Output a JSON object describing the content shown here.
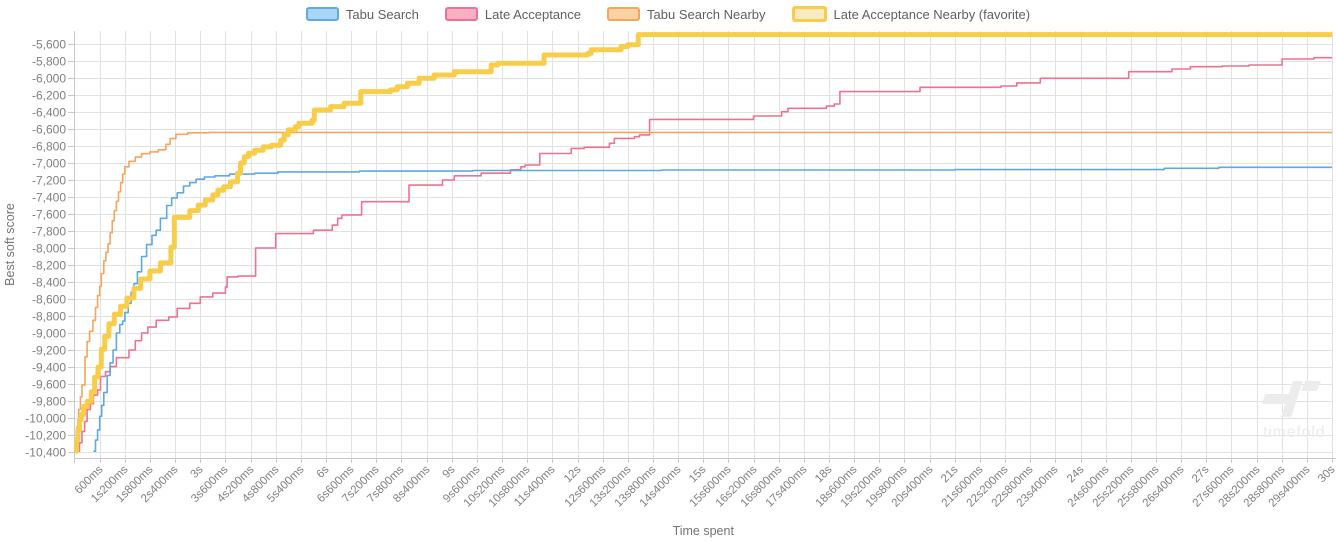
{
  "watermark": {
    "text": "timefold"
  },
  "axes": {
    "y": {
      "title": "Best soft score",
      "tick_labels": [
        "-5,600",
        "-5,800",
        "-6,000",
        "-6,200",
        "-6,400",
        "-6,600",
        "-6,800",
        "-7,000",
        "-7,200",
        "-7,400",
        "-7,600",
        "-7,800",
        "-8,000",
        "-8,200",
        "-8,400",
        "-8,600",
        "-8,800",
        "-9,000",
        "-9,200",
        "-9,400",
        "-9,600",
        "-9,800",
        "-10,000",
        "-10,200",
        "-10,400"
      ]
    },
    "x": {
      "title": "Time spent",
      "tick_labels": [
        "600ms",
        "1s200ms",
        "1s800ms",
        "2s400ms",
        "3s",
        "3s600ms",
        "4s200ms",
        "4s800ms",
        "5s400ms",
        "6s",
        "6s600ms",
        "7s200ms",
        "7s800ms",
        "8s400ms",
        "9s",
        "9s600ms",
        "10s200ms",
        "10s800ms",
        "11s400ms",
        "12s",
        "12s600ms",
        "13s200ms",
        "13s800ms",
        "14s400ms",
        "15s",
        "15s600ms",
        "16s200ms",
        "16s800ms",
        "17s400ms",
        "18s",
        "18s600ms",
        "19s200ms",
        "19s800ms",
        "20s400ms",
        "21s",
        "21s600ms",
        "22s200ms",
        "22s800ms",
        "23s400ms",
        "24s",
        "24s600ms",
        "25s200ms",
        "25s800ms",
        "26s400ms",
        "27s",
        "27s600ms",
        "28s200ms",
        "28s800ms",
        "29s400ms",
        "30s"
      ]
    }
  },
  "colors": {
    "grid": "#e2e2e2",
    "axis_line": "#c9c9c9",
    "tick_text": "#7f7f7f",
    "axis_title": "#737373",
    "watermark": "#ececec"
  },
  "chart_data": {
    "type": "line",
    "step_mode": "step-after",
    "xlabel": "Time spent",
    "ylabel": "Best soft score",
    "xlim_seconds": [
      0,
      30
    ],
    "ylim": [
      -10400,
      -5600
    ],
    "y_tick_step": 200,
    "x_tick_step_seconds": 0.6,
    "grid": true,
    "legend_position": "top-center",
    "series": [
      {
        "name": "Late Acceptance",
        "color": "#ed7291",
        "legend_fill": "#f9afc3",
        "line_width": 1.6,
        "favorite": false,
        "points": [
          [
            0.07,
            -10390
          ],
          [
            0.12,
            -10290
          ],
          [
            0.18,
            -10160
          ],
          [
            0.24,
            -10040
          ],
          [
            0.3,
            -9900
          ],
          [
            0.38,
            -9830
          ],
          [
            0.45,
            -9730
          ],
          [
            0.55,
            -9670
          ],
          [
            0.62,
            -9510
          ],
          [
            0.74,
            -9455
          ],
          [
            0.85,
            -9395
          ],
          [
            1.0,
            -9290
          ],
          [
            1.3,
            -9200
          ],
          [
            1.45,
            -9090
          ],
          [
            1.6,
            -9000
          ],
          [
            1.75,
            -8930
          ],
          [
            1.95,
            -8850
          ],
          [
            2.25,
            -8810
          ],
          [
            2.45,
            -8710
          ],
          [
            2.75,
            -8650
          ],
          [
            3.0,
            -8575
          ],
          [
            3.3,
            -8530
          ],
          [
            3.6,
            -8460
          ],
          [
            3.64,
            -8340
          ],
          [
            3.9,
            -8330
          ],
          [
            4.32,
            -8000
          ],
          [
            4.8,
            -7830
          ],
          [
            5.7,
            -7790
          ],
          [
            6.15,
            -7730
          ],
          [
            6.28,
            -7650
          ],
          [
            6.38,
            -7610
          ],
          [
            6.85,
            -7455
          ],
          [
            7.98,
            -7260
          ],
          [
            8.78,
            -7200
          ],
          [
            9.06,
            -7150
          ],
          [
            9.7,
            -7120
          ],
          [
            10.4,
            -7080
          ],
          [
            10.65,
            -7045
          ],
          [
            10.75,
            -7023
          ],
          [
            11.1,
            -6888
          ],
          [
            11.85,
            -6828
          ],
          [
            12.16,
            -6815
          ],
          [
            12.76,
            -6768
          ],
          [
            12.88,
            -6710
          ],
          [
            13.36,
            -6690
          ],
          [
            13.48,
            -6670
          ],
          [
            13.72,
            -6487
          ],
          [
            16.2,
            -6447
          ],
          [
            16.87,
            -6396
          ],
          [
            17.02,
            -6356
          ],
          [
            17.94,
            -6330
          ],
          [
            18.13,
            -6306
          ],
          [
            18.26,
            -6160
          ],
          [
            20.17,
            -6110
          ],
          [
            22.1,
            -6094
          ],
          [
            22.48,
            -6058
          ],
          [
            23.04,
            -6003
          ],
          [
            25.15,
            -5926
          ],
          [
            26.18,
            -5894
          ],
          [
            26.62,
            -5867
          ],
          [
            27.38,
            -5859
          ],
          [
            28.02,
            -5847
          ],
          [
            28.81,
            -5776
          ],
          [
            29.57,
            -5761
          ],
          [
            30,
            -5761
          ]
        ]
      },
      {
        "name": "Tabu Search",
        "color": "#5fa8e0",
        "legend_fill": "#a9d6f4",
        "line_width": 1.6,
        "favorite": false,
        "points": [
          [
            0.45,
            -10390
          ],
          [
            0.5,
            -10260
          ],
          [
            0.55,
            -10140
          ],
          [
            0.6,
            -9980
          ],
          [
            0.65,
            -9850
          ],
          [
            0.7,
            -9700
          ],
          [
            0.78,
            -9500
          ],
          [
            0.85,
            -9350
          ],
          [
            0.92,
            -9200
          ],
          [
            1.0,
            -9000
          ],
          [
            1.08,
            -8900
          ],
          [
            1.15,
            -8860
          ],
          [
            1.2,
            -8760
          ],
          [
            1.28,
            -8650
          ],
          [
            1.35,
            -8520
          ],
          [
            1.42,
            -8420
          ],
          [
            1.5,
            -8280
          ],
          [
            1.6,
            -8100
          ],
          [
            1.72,
            -7960
          ],
          [
            1.85,
            -7850
          ],
          [
            1.95,
            -7790
          ],
          [
            2.05,
            -7650
          ],
          [
            2.2,
            -7500
          ],
          [
            2.32,
            -7410
          ],
          [
            2.45,
            -7350
          ],
          [
            2.6,
            -7270
          ],
          [
            2.75,
            -7230
          ],
          [
            2.9,
            -7190
          ],
          [
            3.1,
            -7165
          ],
          [
            3.35,
            -7150
          ],
          [
            3.7,
            -7130
          ],
          [
            4.3,
            -7120
          ],
          [
            4.85,
            -7105
          ],
          [
            6.8,
            -7095
          ],
          [
            9.5,
            -7088
          ],
          [
            14.0,
            -7082
          ],
          [
            21.0,
            -7078
          ],
          [
            26.0,
            -7062
          ],
          [
            27.3,
            -7050
          ],
          [
            30,
            -7050
          ]
        ]
      },
      {
        "name": "Tabu Search Nearby",
        "color": "#f5a55c",
        "legend_fill": "#fbd2a2",
        "line_width": 1.6,
        "favorite": false,
        "points": [
          [
            0.03,
            -10390
          ],
          [
            0.06,
            -10100
          ],
          [
            0.1,
            -9900
          ],
          [
            0.14,
            -9750
          ],
          [
            0.18,
            -9610
          ],
          [
            0.25,
            -9280
          ],
          [
            0.3,
            -9100
          ],
          [
            0.36,
            -8980
          ],
          [
            0.44,
            -8850
          ],
          [
            0.5,
            -8700
          ],
          [
            0.55,
            -8560
          ],
          [
            0.6,
            -8450
          ],
          [
            0.64,
            -8300
          ],
          [
            0.7,
            -8150
          ],
          [
            0.75,
            -8050
          ],
          [
            0.8,
            -7950
          ],
          [
            0.85,
            -7820
          ],
          [
            0.9,
            -7680
          ],
          [
            0.95,
            -7560
          ],
          [
            1.0,
            -7450
          ],
          [
            1.05,
            -7340
          ],
          [
            1.1,
            -7230
          ],
          [
            1.15,
            -7130
          ],
          [
            1.2,
            -7045
          ],
          [
            1.3,
            -6980
          ],
          [
            1.45,
            -6930
          ],
          [
            1.6,
            -6890
          ],
          [
            1.8,
            -6870
          ],
          [
            2.0,
            -6845
          ],
          [
            2.18,
            -6780
          ],
          [
            2.28,
            -6712
          ],
          [
            2.42,
            -6662
          ],
          [
            2.7,
            -6645
          ],
          [
            3.2,
            -6640
          ],
          [
            30,
            -6640
          ]
        ]
      },
      {
        "name": "Late Acceptance Nearby (favorite)",
        "color": "#f7cd4a",
        "legend_fill": "#faeac2",
        "line_width": 5,
        "favorite": true,
        "points": [
          [
            0.02,
            -10390
          ],
          [
            0.05,
            -10250
          ],
          [
            0.08,
            -10140
          ],
          [
            0.12,
            -10020
          ],
          [
            0.16,
            -9960
          ],
          [
            0.22,
            -9865
          ],
          [
            0.3,
            -9805
          ],
          [
            0.4,
            -9690
          ],
          [
            0.48,
            -9520
          ],
          [
            0.56,
            -9400
          ],
          [
            0.64,
            -9190
          ],
          [
            0.72,
            -9040
          ],
          [
            0.82,
            -8890
          ],
          [
            0.95,
            -8780
          ],
          [
            1.1,
            -8685
          ],
          [
            1.25,
            -8590
          ],
          [
            1.42,
            -8475
          ],
          [
            1.58,
            -8365
          ],
          [
            1.8,
            -8270
          ],
          [
            2.05,
            -8175
          ],
          [
            2.3,
            -7990
          ],
          [
            2.38,
            -7640
          ],
          [
            2.75,
            -7560
          ],
          [
            2.95,
            -7495
          ],
          [
            3.12,
            -7435
          ],
          [
            3.3,
            -7375
          ],
          [
            3.42,
            -7320
          ],
          [
            3.56,
            -7280
          ],
          [
            3.72,
            -7220
          ],
          [
            3.89,
            -7120
          ],
          [
            3.96,
            -7000
          ],
          [
            4.05,
            -6925
          ],
          [
            4.15,
            -6885
          ],
          [
            4.3,
            -6850
          ],
          [
            4.5,
            -6810
          ],
          [
            4.7,
            -6790
          ],
          [
            4.92,
            -6730
          ],
          [
            5.0,
            -6670
          ],
          [
            5.1,
            -6610
          ],
          [
            5.27,
            -6572
          ],
          [
            5.35,
            -6532
          ],
          [
            5.67,
            -6494
          ],
          [
            5.72,
            -6376
          ],
          [
            6.11,
            -6337
          ],
          [
            6.43,
            -6298
          ],
          [
            6.83,
            -6160
          ],
          [
            7.54,
            -6140
          ],
          [
            7.7,
            -6102
          ],
          [
            7.94,
            -6062
          ],
          [
            8.22,
            -6003
          ],
          [
            8.58,
            -5965
          ],
          [
            9.06,
            -5926
          ],
          [
            9.94,
            -5847
          ],
          [
            10.1,
            -5827
          ],
          [
            11.2,
            -5729
          ],
          [
            12.25,
            -5709
          ],
          [
            12.33,
            -5667
          ],
          [
            13.04,
            -5630
          ],
          [
            13.2,
            -5608
          ],
          [
            13.45,
            -5490
          ],
          [
            30,
            -5490
          ]
        ]
      }
    ]
  }
}
